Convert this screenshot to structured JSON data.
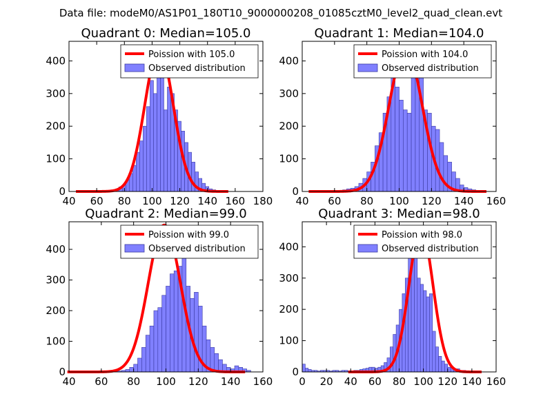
{
  "suptitle": "Data file: modeM0/AS1P01_180T10_9000000208_01085cztM0_level2_quad_clean.evt",
  "colors": {
    "bar_fill": "#8080ff",
    "bar_edge": "#3a3aa0",
    "curve": "#ff0000"
  },
  "chart_data": [
    {
      "type": "bar",
      "title": "Quadrant 0: Median=105.0",
      "legend": [
        "Poission with 105.0",
        "Observed distribution"
      ],
      "legend_position": "top-right",
      "xlim": [
        40,
        180
      ],
      "ylim": [
        0,
        460
      ],
      "xticks": [
        40,
        60,
        80,
        100,
        120,
        140,
        160,
        180
      ],
      "yticks": [
        0,
        100,
        200,
        300,
        400
      ],
      "bins": {
        "start": 66,
        "width": 2.5
      },
      "values": [
        2,
        3,
        5,
        8,
        14,
        20,
        35,
        55,
        80,
        120,
        155,
        200,
        260,
        340,
        300,
        420,
        430,
        250,
        320,
        300,
        250,
        215,
        185,
        150,
        120,
        90,
        60,
        40,
        25,
        15,
        8,
        5,
        3,
        2,
        2
      ],
      "curve_mean": 105.0
    },
    {
      "type": "bar",
      "title": "Quadrant 1: Median=104.0",
      "legend": [
        "Poission with 104.0",
        "Observed distribution"
      ],
      "legend_position": "top-right",
      "xlim": [
        40,
        160
      ],
      "ylim": [
        0,
        460
      ],
      "xticks": [
        40,
        60,
        80,
        100,
        120,
        140,
        160
      ],
      "yticks": [
        0,
        100,
        200,
        300,
        400
      ],
      "bins": {
        "start": 60,
        "width": 2.5
      },
      "values": [
        3,
        3,
        5,
        8,
        10,
        15,
        25,
        40,
        60,
        90,
        140,
        180,
        240,
        290,
        360,
        320,
        280,
        250,
        240,
        380,
        430,
        400,
        250,
        240,
        200,
        190,
        150,
        110,
        90,
        60,
        40,
        20,
        12,
        8,
        5,
        3
      ],
      "curve_mean": 104.0
    },
    {
      "type": "bar",
      "title": "Quadrant 2: Median=99.0",
      "legend": [
        "Poission with 99.0",
        "Observed distribution"
      ],
      "legend_position": "top-right",
      "xlim": [
        40,
        160
      ],
      "ylim": [
        0,
        490
      ],
      "xticks": [
        40,
        60,
        80,
        100,
        120,
        140,
        160
      ],
      "yticks": [
        0,
        100,
        200,
        300,
        400
      ],
      "bins": {
        "start": 50,
        "width": 2.5
      },
      "values": [
        3,
        3,
        3,
        3,
        3,
        3,
        3,
        3,
        3,
        5,
        8,
        15,
        25,
        45,
        80,
        120,
        150,
        200,
        210,
        250,
        280,
        320,
        330,
        345,
        470,
        280,
        240,
        260,
        215,
        150,
        105,
        80,
        60,
        40,
        25,
        15,
        10,
        20,
        15,
        10,
        5
      ],
      "curve_mean": 99.0
    },
    {
      "type": "bar",
      "title": "Quadrant 3: Median=98.0",
      "legend": [
        "Poission with 98.0",
        "Observed distribution"
      ],
      "legend_position": "top-right",
      "xlim": [
        0,
        160
      ],
      "ylim": [
        0,
        480
      ],
      "xticks": [
        0,
        20,
        40,
        60,
        80,
        100,
        120,
        140,
        160
      ],
      "yticks": [
        0,
        100,
        200,
        300,
        400
      ],
      "bins": {
        "start": 0,
        "width": 2.5
      },
      "values": [
        25,
        12,
        8,
        5,
        5,
        3,
        5,
        5,
        5,
        3,
        5,
        5,
        3,
        5,
        5,
        3,
        3,
        5,
        5,
        8,
        10,
        12,
        15,
        15,
        12,
        15,
        20,
        30,
        45,
        80,
        120,
        150,
        200,
        250,
        300,
        380,
        450,
        400,
        300,
        280,
        260,
        240,
        250,
        130,
        80,
        50,
        35,
        25,
        15,
        15,
        10,
        10,
        5,
        5
      ],
      "curve_mean": 98.0
    }
  ]
}
